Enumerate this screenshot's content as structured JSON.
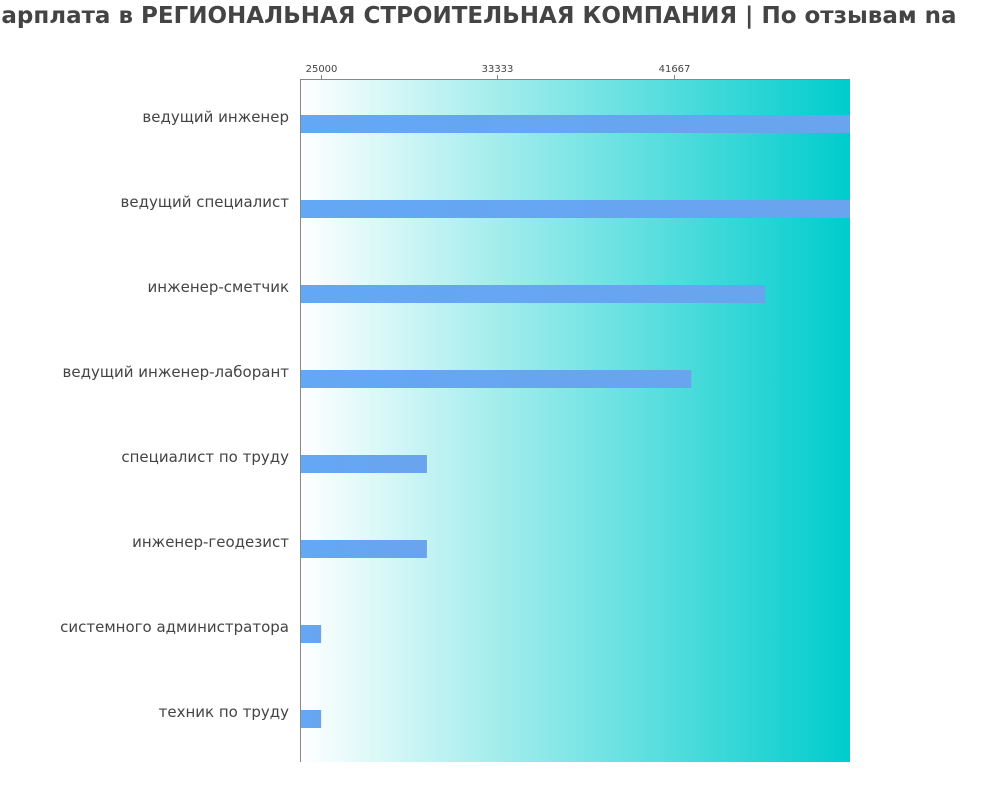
{
  "chart_data": {
    "type": "bar",
    "orientation": "horizontal",
    "title": "зарплата в РЕГИОНАЛЬНАЯ СТРОИТЕЛЬНАЯ КОМПАНИЯ | По отзывам na",
    "categories": [
      "ведущий инженер",
      "ведущий специалист",
      "инженер-сметчик",
      "ведущий инженер-лаборант",
      "специалист по труду",
      "инженер-геодезист",
      "системного администратора",
      "техник по труду"
    ],
    "values": [
      50000,
      50000,
      46000,
      42500,
      30000,
      30000,
      25000,
      25000
    ],
    "xlim": [
      24000,
      50000
    ],
    "xticks": [
      25000,
      33333,
      41667
    ],
    "xtick_labels": [
      "25000",
      "33333",
      "41667"
    ],
    "xlabel": "",
    "ylabel": "",
    "grid": false,
    "legend": "none",
    "colors": {
      "bar_start": "#63a8f5",
      "bar_end": "#6aa3ee",
      "bg_start": "#ffffff",
      "bg_end": "#00cccc",
      "text": "#444444",
      "axis": "#888888"
    }
  }
}
